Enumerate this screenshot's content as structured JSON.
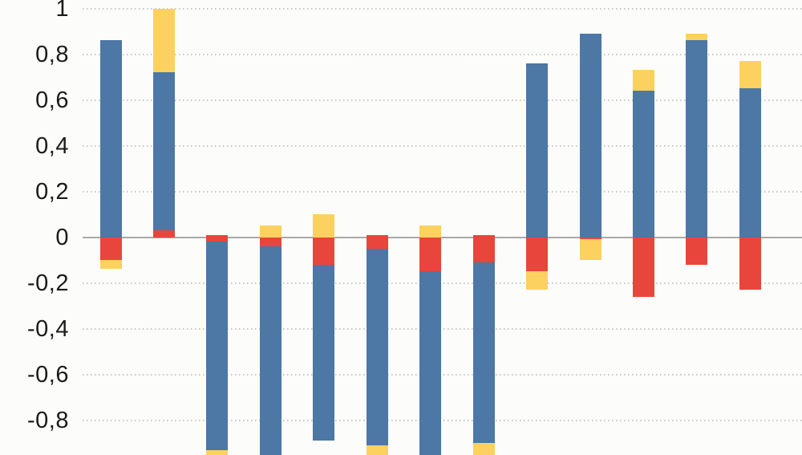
{
  "chart_data": {
    "type": "bar",
    "subtype": "stacked-diverging-vertical",
    "title": "",
    "xlabel": "",
    "ylabel": "",
    "ylim": [
      -0.95,
      1.0
    ],
    "grid": "dotted horizontal gridlines every 0.2, solid line at 0",
    "legend_position": "none",
    "decimal_separator": ",",
    "x_tick_labels_visible": false,
    "note_bottom_clipped": "bars 3,4,6,7,8 extend below the visible bottom edge (~ -0.95)",
    "yticks": [
      {
        "value": 1.0,
        "label": "1"
      },
      {
        "value": 0.8,
        "label": "0,8"
      },
      {
        "value": 0.6,
        "label": "0,6"
      },
      {
        "value": 0.4,
        "label": "0,4"
      },
      {
        "value": 0.2,
        "label": "0,2"
      },
      {
        "value": 0.0,
        "label": "0"
      },
      {
        "value": -0.2,
        "label": "-0,2"
      },
      {
        "value": -0.4,
        "label": "-0,4"
      },
      {
        "value": -0.6,
        "label": "-0,6"
      },
      {
        "value": -0.8,
        "label": "-0,8"
      }
    ],
    "series_colors": {
      "blue": "#4D77A5",
      "red": "#E8463C",
      "yellow": "#FCD15F"
    },
    "bars": [
      {
        "index": 1,
        "segments": [
          {
            "series": "blue",
            "from": 0,
            "to": 0.86
          },
          {
            "series": "red",
            "from": 0,
            "to": -0.1
          },
          {
            "series": "yellow",
            "from": -0.1,
            "to": -0.14
          }
        ]
      },
      {
        "index": 2,
        "segments": [
          {
            "series": "red",
            "from": 0,
            "to": 0.03
          },
          {
            "series": "blue",
            "from": 0.03,
            "to": 0.72
          },
          {
            "series": "yellow",
            "from": 0.72,
            "to": 1.0
          }
        ]
      },
      {
        "index": 3,
        "segments": [
          {
            "series": "red",
            "from": 0.01,
            "to": -0.02
          },
          {
            "series": "blue",
            "from": -0.02,
            "to": -0.93
          },
          {
            "series": "yellow",
            "from": -0.93,
            "to": -0.96
          }
        ]
      },
      {
        "index": 4,
        "segments": [
          {
            "series": "yellow",
            "from": 0.05,
            "to": 0
          },
          {
            "series": "red",
            "from": 0,
            "to": -0.04
          },
          {
            "series": "blue",
            "from": -0.04,
            "to": -0.96
          }
        ]
      },
      {
        "index": 5,
        "segments": [
          {
            "series": "yellow",
            "from": 0.1,
            "to": 0
          },
          {
            "series": "red",
            "from": 0,
            "to": -0.12
          },
          {
            "series": "blue",
            "from": -0.12,
            "to": -0.89
          }
        ]
      },
      {
        "index": 6,
        "segments": [
          {
            "series": "red",
            "from": 0.01,
            "to": -0.05
          },
          {
            "series": "blue",
            "from": -0.05,
            "to": -0.91
          },
          {
            "series": "yellow",
            "from": -0.91,
            "to": -0.96
          }
        ]
      },
      {
        "index": 7,
        "segments": [
          {
            "series": "yellow",
            "from": 0.05,
            "to": 0
          },
          {
            "series": "red",
            "from": 0,
            "to": -0.15
          },
          {
            "series": "blue",
            "from": -0.15,
            "to": -0.96
          }
        ]
      },
      {
        "index": 8,
        "segments": [
          {
            "series": "red",
            "from": 0.01,
            "to": -0.11
          },
          {
            "series": "blue",
            "from": -0.11,
            "to": -0.9
          },
          {
            "series": "yellow",
            "from": -0.9,
            "to": -0.96
          }
        ]
      },
      {
        "index": 9,
        "segments": [
          {
            "series": "blue",
            "from": 0,
            "to": 0.76
          },
          {
            "series": "red",
            "from": 0,
            "to": -0.15
          },
          {
            "series": "yellow",
            "from": -0.15,
            "to": -0.23
          }
        ]
      },
      {
        "index": 10,
        "segments": [
          {
            "series": "blue",
            "from": 0,
            "to": 0.89
          },
          {
            "series": "red",
            "from": 0,
            "to": -0.01
          },
          {
            "series": "yellow",
            "from": -0.01,
            "to": -0.1
          }
        ]
      },
      {
        "index": 11,
        "segments": [
          {
            "series": "blue",
            "from": 0,
            "to": 0.64
          },
          {
            "series": "yellow",
            "from": 0.64,
            "to": 0.73
          },
          {
            "series": "red",
            "from": 0,
            "to": -0.26
          }
        ]
      },
      {
        "index": 12,
        "segments": [
          {
            "series": "blue",
            "from": 0,
            "to": 0.86
          },
          {
            "series": "yellow",
            "from": 0.86,
            "to": 0.89
          },
          {
            "series": "red",
            "from": 0,
            "to": -0.12
          }
        ]
      },
      {
        "index": 13,
        "segments": [
          {
            "series": "blue",
            "from": 0,
            "to": 0.65
          },
          {
            "series": "yellow",
            "from": 0.65,
            "to": 0.77
          },
          {
            "series": "red",
            "from": 0,
            "to": -0.23
          }
        ]
      }
    ]
  },
  "colors": {
    "background": "#FCFCFB",
    "gridline": "#C7C7C5",
    "zero_line": "#A9A9A7",
    "tick_label_text": "#1B1B1B"
  }
}
